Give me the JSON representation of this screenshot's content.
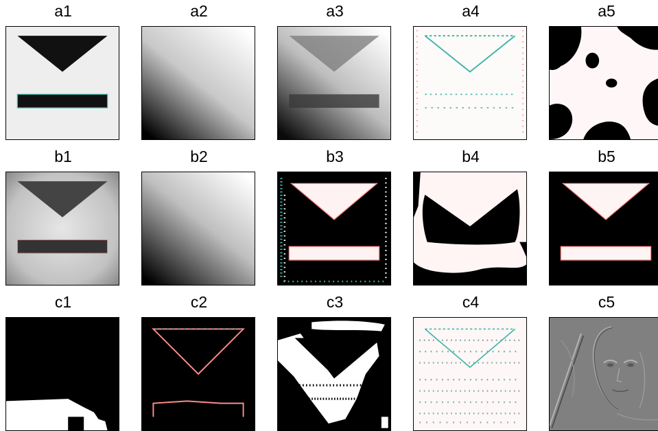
{
  "figure": {
    "panels": [
      {
        "label": "a1",
        "content": "Rendered panel image a1."
      },
      {
        "label": "a2",
        "content": "Rendered panel image a2."
      },
      {
        "label": "a3",
        "content": "Rendered panel image a3."
      },
      {
        "label": "a4",
        "content": "Rendered panel image a4."
      },
      {
        "label": "a5",
        "content": "Rendered panel image a5."
      },
      {
        "label": "b1",
        "content": "Rendered panel image b1."
      },
      {
        "label": "b2",
        "content": "Rendered panel image b2."
      },
      {
        "label": "b3",
        "content": "Rendered panel image b3."
      },
      {
        "label": "b4",
        "content": "Rendered panel image b4."
      },
      {
        "label": "b5",
        "content": "Rendered panel image b5."
      },
      {
        "label": "c1",
        "content": "Rendered panel image c1."
      },
      {
        "label": "c2",
        "content": "Rendered panel image c2."
      },
      {
        "label": "c3",
        "content": "Rendered panel image c3."
      },
      {
        "label": "c4",
        "content": "Rendered panel image c4."
      },
      {
        "label": "c5",
        "content": "Rendered panel image c5."
      }
    ],
    "colors": {
      "edge_pink": "#ff8a8a",
      "edge_teal": "#3fb6a6",
      "noise_gray": "#808080"
    }
  }
}
